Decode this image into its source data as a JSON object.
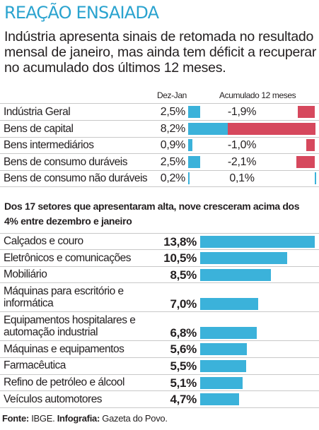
{
  "title": "REAÇÃO ENSAIADA",
  "subtitle": "Indústria apresenta sinais de retomada no resultado mensal de janeiro, mas ainda tem déficit a recuperar no acumulado dos últimos 12 meses.",
  "chart_data": [
    {
      "type": "bar",
      "column_headers": [
        "Dez-Jan",
        "Acumulado 12 meses"
      ],
      "categories": [
        "Indústria Geral",
        "Bens de capital",
        "Bens intermediários",
        "Bens de consumo duráveis",
        "Bens de consumo não duráveis"
      ],
      "series": [
        {
          "name": "Dez-Jan",
          "values": [
            2.5,
            8.2,
            0.9,
            2.5,
            0.2
          ],
          "labels": [
            "2,5%",
            "8,2%",
            "0,9%",
            "2,5%",
            "0,2%"
          ],
          "color": "#3bb2da"
        },
        {
          "name": "Acumulado 12 meses",
          "values": [
            -1.9,
            -9.7,
            -1.0,
            -2.1,
            0.1
          ],
          "labels": [
            "-1,9%",
            "-9,7%",
            "-1,0%",
            "-2,1%",
            "0,1%"
          ],
          "color_negative": "#d6485d",
          "color_positive": "#3bb2da"
        }
      ]
    },
    {
      "type": "bar",
      "orientation": "horizontal",
      "title": "Dos 17 setores que apresentaram alta, nove cresceram acima dos 4% entre dezembro e janeiro",
      "categories": [
        "Calçados e couro",
        "Eletrônicos e comunicações",
        "Mobiliário",
        "Máquinas para escritório e informática",
        "Equipamentos hospitalares e automação industrial",
        "Máquinas e equipamentos",
        "Farmacêutica",
        "Refino de petróleo e álcool",
        "Veículos automotores"
      ],
      "values": [
        13.8,
        10.5,
        8.5,
        7.0,
        6.8,
        5.6,
        5.5,
        5.1,
        4.7
      ],
      "labels": [
        "13,8%",
        "10,5%",
        "8,5%",
        "7,0%",
        "6,8%",
        "5,6%",
        "5,5%",
        "5,1%",
        "4,7%"
      ],
      "color": "#3bb2da"
    }
  ],
  "source": {
    "label1": "Fonte:",
    "text1": " IBGE. ",
    "label2": "Infografia:",
    "text2": " Gazeta do Povo."
  }
}
